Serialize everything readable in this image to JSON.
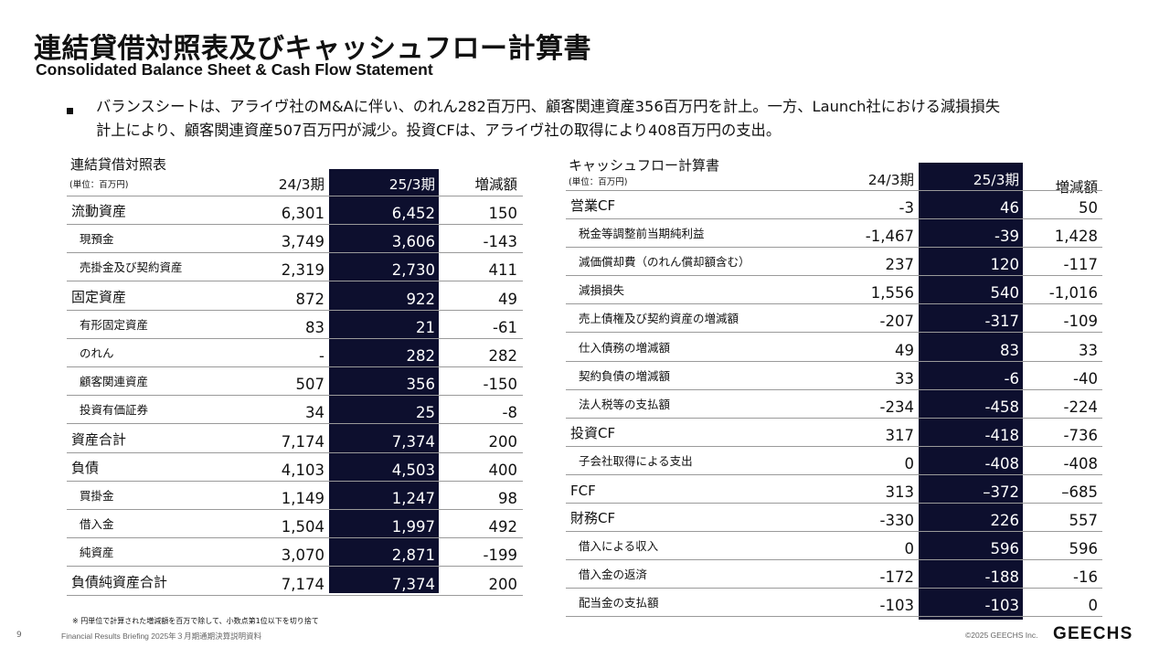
{
  "page": {
    "title": "連結貸借対照表及びキャッシュフロー計算書",
    "subtitle": "Consolidated Balance Sheet & Cash Flow Statement",
    "summary_lines": [
      "バランスシートは、アライヴ社のM&Aに伴い、のれん282百万円、顧客関連資産356百万円を計上。一方、Launch社における減損損失",
      "計上により、顧客関連資産507百万円が減少。投資CFは、アライヴ社の取得により408百万円の支出。"
    ]
  },
  "balance_sheet": {
    "title": "連結貸借対照表",
    "unit": "(単位：百万円)",
    "headers": [
      "24/3期",
      "25/3期",
      "増減額"
    ],
    "rows": [
      {
        "label": "流動資産",
        "sub": false,
        "values": [
          "6,301",
          "6,452",
          "150"
        ]
      },
      {
        "label": "現預金",
        "sub": true,
        "values": [
          "3,749",
          "3,606",
          "-143"
        ]
      },
      {
        "label": "売掛金及び契約資産",
        "sub": true,
        "values": [
          "2,319",
          "2,730",
          "411"
        ]
      },
      {
        "label": "固定資産",
        "sub": false,
        "values": [
          "872",
          "922",
          "49"
        ]
      },
      {
        "label": "有形固定資産",
        "sub": true,
        "values": [
          "83",
          "21",
          "-61"
        ]
      },
      {
        "label": "のれん",
        "sub": true,
        "values": [
          "-",
          "282",
          "282"
        ]
      },
      {
        "label": "顧客関連資産",
        "sub": true,
        "values": [
          "507",
          "356",
          "-150"
        ]
      },
      {
        "label": "投資有価証券",
        "sub": true,
        "values": [
          "34",
          "25",
          "-8"
        ]
      },
      {
        "label": "資産合計",
        "sub": false,
        "values": [
          "7,174",
          "7,374",
          "200"
        ]
      },
      {
        "label": "負債",
        "sub": false,
        "values": [
          "4,103",
          "4,503",
          "400"
        ]
      },
      {
        "label": "買掛金",
        "sub": true,
        "values": [
          "1,149",
          "1,247",
          "98"
        ]
      },
      {
        "label": "借入金",
        "sub": true,
        "values": [
          "1,504",
          "1,997",
          "492"
        ]
      },
      {
        "label": "純資産",
        "sub": true,
        "values": [
          "3,070",
          "2,871",
          "-199"
        ]
      },
      {
        "label": "負債純資産合計",
        "sub": false,
        "values": [
          "7,174",
          "7,374",
          "200"
        ]
      }
    ]
  },
  "cash_flow": {
    "title": "キャッシュフロー計算書",
    "unit": "(単位：百万円)",
    "headers": [
      "24/3期",
      "25/3期",
      "増減額"
    ],
    "rows": [
      {
        "label": "営業CF",
        "sub": false,
        "values": [
          "-3",
          "46",
          "50"
        ]
      },
      {
        "label": "税金等調整前当期純利益",
        "sub": true,
        "values": [
          "-1,467",
          "-39",
          "1,428"
        ]
      },
      {
        "label": "減価償却費（のれん償却額含む）",
        "sub": true,
        "values": [
          "237",
          "120",
          "-117"
        ]
      },
      {
        "label": "減損損失",
        "sub": true,
        "values": [
          "1,556",
          "540",
          "-1,016"
        ]
      },
      {
        "label": "売上債権及び契約資産の増減額",
        "sub": true,
        "values": [
          "-207",
          "-317",
          "-109"
        ]
      },
      {
        "label": "仕入債務の増減額",
        "sub": true,
        "values": [
          "49",
          "83",
          "33"
        ]
      },
      {
        "label": "契約負債の増減額",
        "sub": true,
        "values": [
          "33",
          "-6",
          "-40"
        ]
      },
      {
        "label": "法人税等の支払額",
        "sub": true,
        "values": [
          "-234",
          "-458",
          "-224"
        ]
      },
      {
        "label": "投資CF",
        "sub": false,
        "values": [
          "317",
          "-418",
          "-736"
        ]
      },
      {
        "label": "子会社取得による支出",
        "sub": true,
        "values": [
          "0",
          "-408",
          "-408"
        ]
      },
      {
        "label": "FCF",
        "sub": false,
        "values": [
          "313",
          "–372",
          "–685"
        ]
      },
      {
        "label": "財務CF",
        "sub": false,
        "values": [
          "-330",
          "226",
          "557"
        ]
      },
      {
        "label": "借入による収入",
        "sub": true,
        "values": [
          "0",
          "596",
          "596"
        ]
      },
      {
        "label": "借入金の返済",
        "sub": true,
        "values": [
          "-172",
          "-188",
          "-16"
        ]
      },
      {
        "label": "配当金の支払額",
        "sub": true,
        "values": [
          "-103",
          "-103",
          "0"
        ]
      }
    ]
  },
  "footer": {
    "footnote": "※ 円単位で計算された増減額を百万で除して、小数点第1位以下を切り捨て",
    "page_number": "9",
    "briefing": "Financial Results Briefing 2025年３月期通期決算説明資料",
    "copyright": "©2025 GEECHS Inc.",
    "logo": "GEECHS"
  },
  "colors": {
    "highlight_column": "#0d0f2e",
    "row_divider": "#9a9a9a",
    "text": "#111111"
  }
}
